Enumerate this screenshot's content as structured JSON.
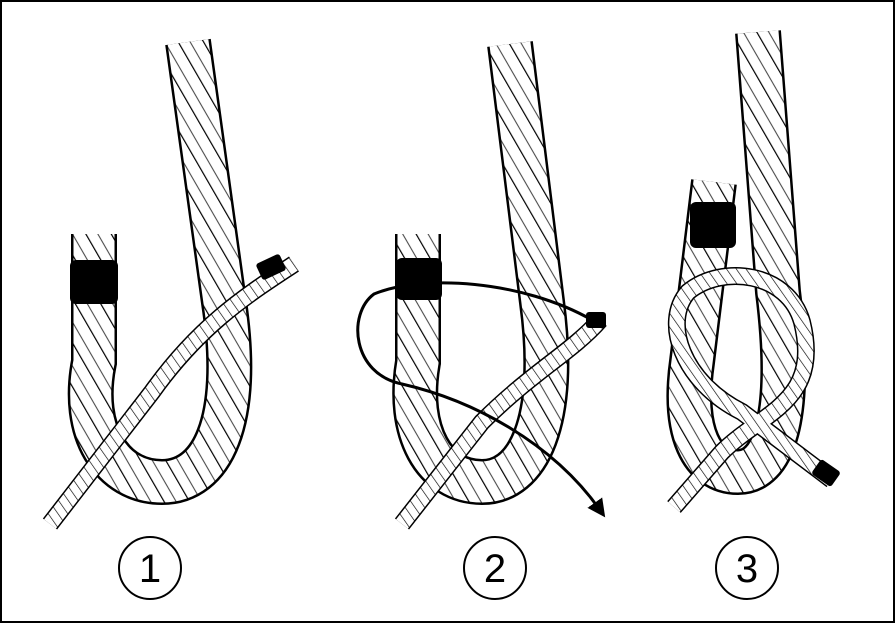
{
  "steps": [
    {
      "number": "1"
    },
    {
      "number": "2"
    },
    {
      "number": "3"
    }
  ],
  "colors": {
    "rope_fill": "#ffffff",
    "outline": "#000000",
    "whipping": "#000000"
  },
  "icons": [
    "thick-rope",
    "thin-rope",
    "whipping",
    "direction-arrow"
  ]
}
